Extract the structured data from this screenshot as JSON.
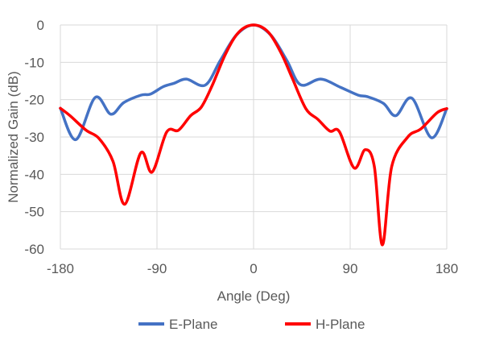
{
  "chart_data": {
    "type": "line",
    "title": "",
    "xlabel": "Angle (Deg)",
    "ylabel": "Normalized Gain (dB)",
    "xlim": [
      -180,
      180
    ],
    "ylim": [
      -60,
      0
    ],
    "xticks": [
      -180,
      -90,
      0,
      90,
      180
    ],
    "yticks": [
      0,
      -10,
      -20,
      -30,
      -40,
      -50,
      -60
    ],
    "grid": true,
    "legend_position": "bottom",
    "series": [
      {
        "name": "E-Plane",
        "color": "#4472C4",
        "points": [
          [
            -180,
            -22.3
          ],
          [
            -165.5,
            -30.7
          ],
          [
            -147.5,
            -19.4
          ],
          [
            -133,
            -23.9
          ],
          [
            -121,
            -20.8
          ],
          [
            -105,
            -18.8
          ],
          [
            -96,
            -18.5
          ],
          [
            -84,
            -16.5
          ],
          [
            -74,
            -15.6
          ],
          [
            -62.5,
            -14.5
          ],
          [
            -45,
            -16.1
          ],
          [
            -31,
            -9.5
          ],
          [
            -16,
            -2.7
          ],
          [
            0,
            0
          ],
          [
            16,
            -2.7
          ],
          [
            31,
            -9.5
          ],
          [
            43.7,
            -16
          ],
          [
            62.5,
            -14.5
          ],
          [
            81,
            -16.7
          ],
          [
            97.5,
            -18.8
          ],
          [
            106,
            -19.2
          ],
          [
            121,
            -21
          ],
          [
            132.5,
            -24.3
          ],
          [
            147.5,
            -19.6
          ],
          [
            165.7,
            -30.2
          ],
          [
            180,
            -22.4
          ]
        ]
      },
      {
        "name": "H-Plane",
        "color": "#FF0000",
        "points": [
          [
            -180,
            -22.3
          ],
          [
            -171,
            -24.3
          ],
          [
            -156,
            -28.2
          ],
          [
            -144,
            -30.4
          ],
          [
            -131,
            -36.5
          ],
          [
            -120,
            -48
          ],
          [
            -105,
            -34.2
          ],
          [
            -94.5,
            -39.4
          ],
          [
            -81,
            -28.7
          ],
          [
            -70,
            -28.2
          ],
          [
            -58.7,
            -24.3
          ],
          [
            -48.7,
            -22
          ],
          [
            -38.7,
            -16.3
          ],
          [
            -26,
            -7.7
          ],
          [
            -13.7,
            -1.9
          ],
          [
            0,
            0
          ],
          [
            13.7,
            -1.9
          ],
          [
            26,
            -7.7
          ],
          [
            36,
            -14.2
          ],
          [
            48.7,
            -22.4
          ],
          [
            60,
            -25.3
          ],
          [
            71,
            -28.4
          ],
          [
            80,
            -28.6
          ],
          [
            93.7,
            -38.3
          ],
          [
            104,
            -33.4
          ],
          [
            112.5,
            -37.9
          ],
          [
            120,
            -58.9
          ],
          [
            128.7,
            -37.9
          ],
          [
            143.7,
            -30
          ],
          [
            156,
            -27.8
          ],
          [
            171,
            -23.5
          ],
          [
            180,
            -22.4
          ]
        ]
      }
    ]
  }
}
